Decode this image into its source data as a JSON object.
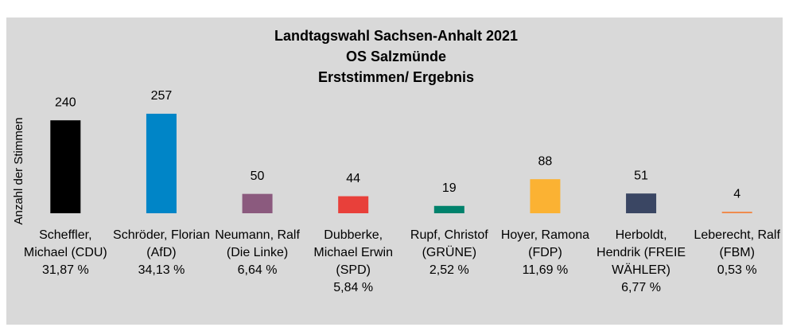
{
  "chart_data": {
    "type": "bar",
    "title": [
      "Landtagswahl Sachsen-Anhalt 2021",
      "OS Salzmünde",
      "Erststimmen/ Ergebnis"
    ],
    "y_label": "Anzahl der Stimmen",
    "categories": [
      "Scheffler, Michael (CDU)",
      "Schröder, Florian (AfD)",
      "Neumann, Ralf (Die Linke)",
      "Dubberke, Michael Erwin (SPD)",
      "Rupf, Christof (GRÜNE)",
      "Hoyer, Ramona (FDP)",
      "Herboldt, Hendrik (FREIE WÄHLER)",
      "Leberecht, Ralf (FBM)"
    ],
    "shares": [
      "31,87 %",
      "34,13 %",
      "6,64 %",
      "5,84 %",
      "2,52 %",
      "11,69 %",
      "6,77 %",
      "0,53 %"
    ],
    "values": [
      240,
      257,
      50,
      44,
      19,
      88,
      51,
      4
    ],
    "colors": [
      "#000000",
      "#0085c7",
      "#8b5a7e",
      "#e8403a",
      "#00826c",
      "#fbb233",
      "#3a4663",
      "#f08a4b"
    ],
    "ylim": [
      0,
      300
    ]
  }
}
